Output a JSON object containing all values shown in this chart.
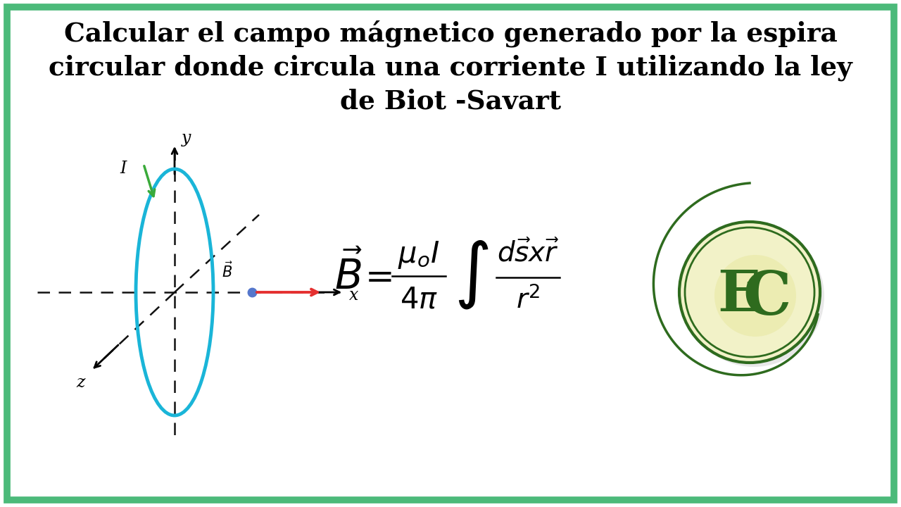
{
  "title_line1": "Calcular el campo mágnetico generado por la espira",
  "title_line2": "circular donde circula una corriente I utilizando la ley",
  "title_line3": "de Biot -Savart",
  "bg_color": "#ffffff",
  "border_color": "#4cba7a",
  "ellipse_color": "#1ab5d8",
  "ellipse_lw": 3.5,
  "dashed_color": "#111111",
  "arrow_red": "#e53030",
  "arrow_green": "#3aaa3a",
  "dot_blue": "#5577cc",
  "logo_circle_fill": "#f2f2c8",
  "logo_circle_edge": "#2e6b1e",
  "logo_green_dark": "#2e6b1e",
  "logo_spiral_color": "#2e6b1e"
}
